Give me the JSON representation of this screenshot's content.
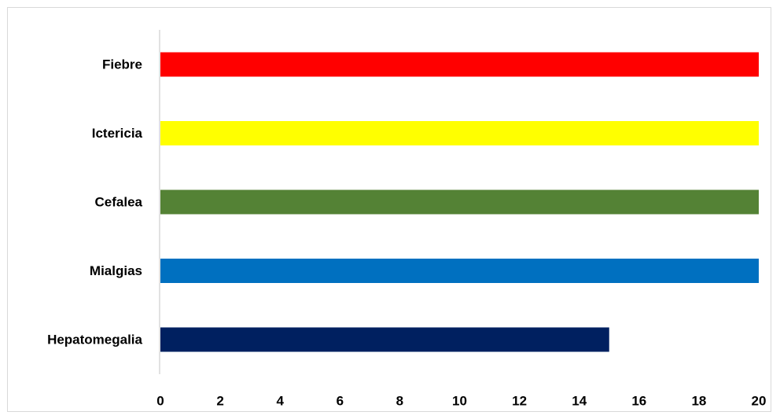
{
  "chart_data": {
    "type": "bar",
    "orientation": "horizontal",
    "categories": [
      "Fiebre",
      "Ictericia",
      "Cefalea",
      "Mialgias",
      "Hepatomegalia"
    ],
    "values": [
      20,
      20,
      20,
      20,
      15
    ],
    "colors": [
      "#ff0000",
      "#ffff00",
      "#548235",
      "#0070c0",
      "#002060"
    ],
    "xlim": [
      0,
      20
    ],
    "xticks": [
      "0",
      "2",
      "4",
      "6",
      "8",
      "10",
      "12",
      "14",
      "16",
      "18",
      "20"
    ],
    "grid": false,
    "legend": "none",
    "title": "",
    "xlabel": "",
    "ylabel": ""
  }
}
